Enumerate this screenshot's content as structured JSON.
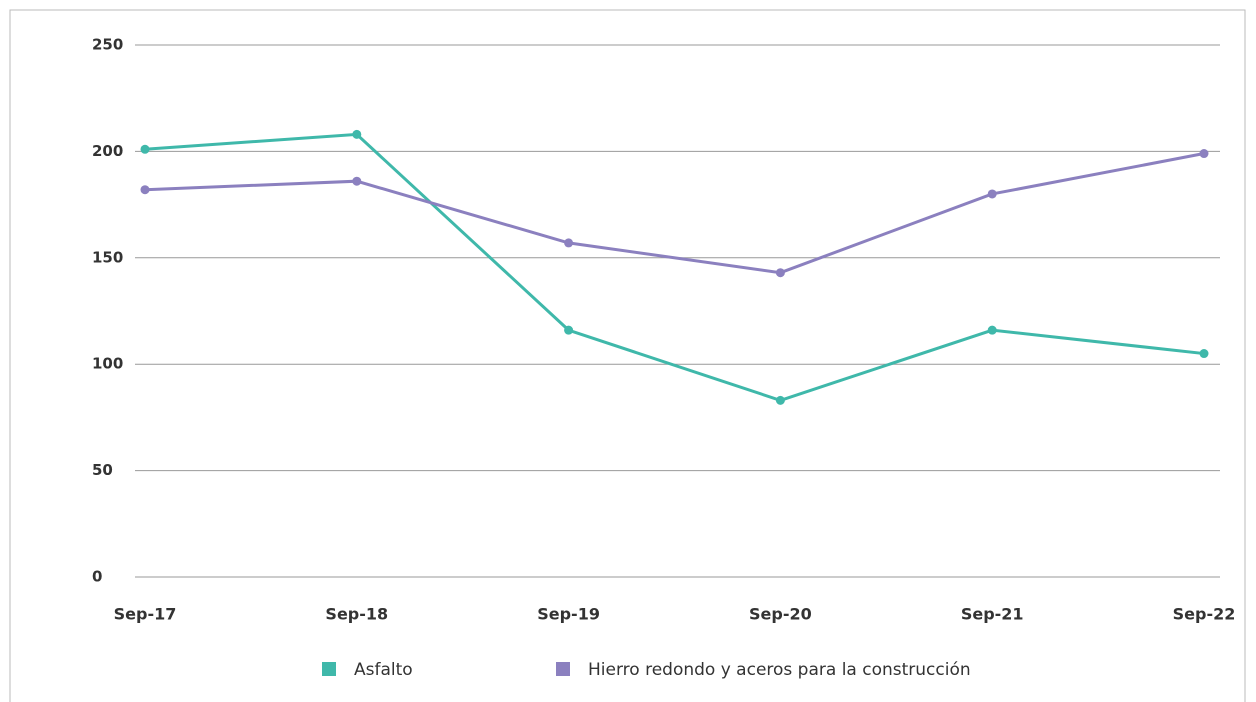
{
  "chart_data": {
    "type": "line",
    "categories": [
      "Sep-17",
      "Sep-18",
      "Sep-19",
      "Sep-20",
      "Sep-21",
      "Sep-22"
    ],
    "series": [
      {
        "name": "Asfalto",
        "color": "#3fb8aa",
        "values": [
          201,
          208,
          116,
          83,
          116,
          105
        ]
      },
      {
        "name": "Hierro redondo y aceros para la construcción",
        "color": "#8b80bf",
        "values": [
          182,
          186,
          157,
          143,
          180,
          199
        ]
      }
    ],
    "ylim": [
      0,
      250
    ],
    "yticks": [
      0,
      50,
      100,
      150,
      200,
      250
    ],
    "grid": true
  }
}
